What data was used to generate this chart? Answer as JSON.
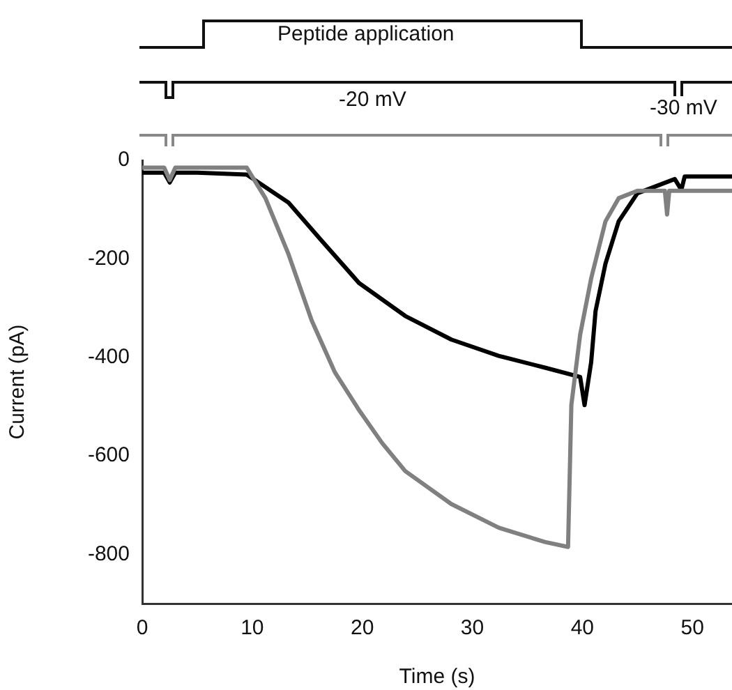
{
  "chart_data": {
    "type": "line",
    "xlabel": "Time (s)",
    "ylabel": "Current (pA)",
    "annotations": [
      "Peptide application",
      "-20 mV",
      "-30 mV"
    ],
    "xlim": [
      0,
      53.6
    ],
    "xticks": [
      0,
      10,
      20,
      30,
      40,
      50
    ],
    "ylim": [
      -900,
      0
    ],
    "yticks": [
      0,
      -200,
      -400,
      -600,
      -800
    ],
    "grid": false,
    "legend": false,
    "marker": "none",
    "line_style": "solid",
    "series": [
      {
        "color": "#808080",
        "x": [
          0,
          2,
          2.5,
          3,
          5,
          9.5,
          11.2,
          13.3,
          15.4,
          17.5,
          19.7,
          21.8,
          23.9,
          28.1,
          32.4,
          36.6,
          38.7,
          39,
          39.8,
          40.8,
          42.1,
          43.3,
          45,
          47.5,
          47.7,
          47.9,
          49.3,
          53.6
        ],
        "values": [
          -15,
          -15,
          -40,
          -15,
          -15,
          -15,
          -77,
          -191,
          -325,
          -430,
          -507,
          -574,
          -631,
          -698,
          -746,
          -775,
          -785,
          -497,
          -354,
          -240,
          -124,
          -77,
          -62,
          -62,
          -110,
          -62,
          -62,
          -62
        ]
      },
      {
        "color": "#000000",
        "x": [
          0,
          2,
          2.5,
          3,
          5,
          9.5,
          13.3,
          16.3,
          19.7,
          23.9,
          28.1,
          32.4,
          36.6,
          39.8,
          40.2,
          40.8,
          41.2,
          42.1,
          43.3,
          45,
          48.4,
          49,
          49.3,
          53.6
        ],
        "values": [
          -25,
          -25,
          -45,
          -25,
          -25,
          -29,
          -86,
          -163,
          -249,
          -316,
          -364,
          -397,
          -421,
          -440,
          -497,
          -410,
          -306,
          -210,
          -124,
          -67,
          -38,
          -60,
          -33,
          -33
        ]
      }
    ]
  }
}
